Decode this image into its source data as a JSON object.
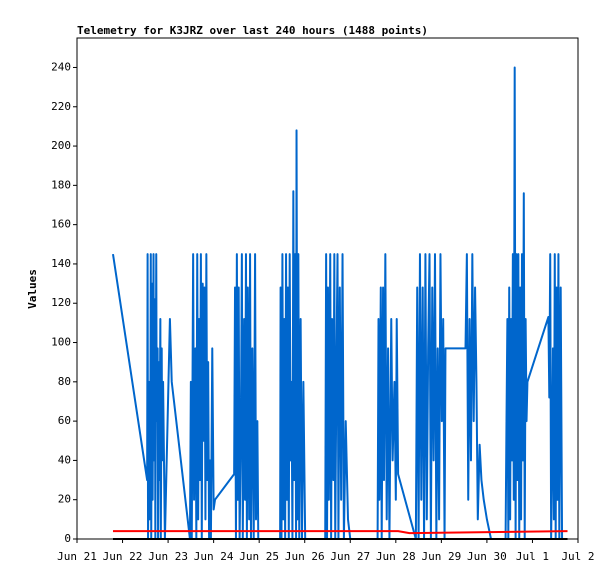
{
  "chart_data": {
    "type": "line",
    "title": "Telemetry for K3JRZ over last 240 hours (1488 points)",
    "y_label": "Values",
    "xlim": [
      0,
      11
    ],
    "xticks": [
      {
        "value": 0,
        "label": "Jun 21"
      },
      {
        "value": 1,
        "label": "Jun 22"
      },
      {
        "value": 2,
        "label": "Jun 23"
      },
      {
        "value": 3,
        "label": "Jun 24"
      },
      {
        "value": 4,
        "label": "Jun 25"
      },
      {
        "value": 5,
        "label": "Jun 26"
      },
      {
        "value": 6,
        "label": "Jun 27"
      },
      {
        "value": 7,
        "label": "Jun 28"
      },
      {
        "value": 8,
        "label": "Jun 29"
      },
      {
        "value": 9,
        "label": "Jun 30"
      },
      {
        "value": 10,
        "label": "Jul 1"
      },
      {
        "value": 11,
        "label": "Jul 2"
      }
    ],
    "ylim": [
      0,
      255
    ],
    "yticks": [
      0,
      20,
      40,
      60,
      80,
      100,
      120,
      140,
      160,
      180,
      200,
      220,
      240
    ],
    "series": [
      {
        "color": "#0066cc",
        "x": [
          0.79,
          1.54,
          1.55,
          1.56,
          1.58,
          1.59,
          1.61,
          1.62,
          1.63,
          1.65,
          1.66,
          1.68,
          1.69,
          1.71,
          1.72,
          1.74,
          1.75,
          1.77,
          1.78,
          1.8,
          1.81,
          1.83,
          1.84,
          1.86,
          1.87,
          1.89,
          1.93,
          2.04,
          2.08,
          2.48,
          2.5,
          2.52,
          2.55,
          2.57,
          2.6,
          2.62,
          2.64,
          2.66,
          2.68,
          2.7,
          2.72,
          2.74,
          2.76,
          2.78,
          2.8,
          2.82,
          2.84,
          2.86,
          2.88,
          2.9,
          2.92,
          2.94,
          2.97,
          3.0,
          3.03,
          3.45,
          3.47,
          3.49,
          3.51,
          3.53,
          3.55,
          3.57,
          3.6,
          3.62,
          3.64,
          3.67,
          3.69,
          3.71,
          3.73,
          3.75,
          3.78,
          3.8,
          3.82,
          3.85,
          3.88,
          3.91,
          3.93,
          3.96,
          3.98,
          4.02,
          4.46,
          4.47,
          4.49,
          4.51,
          4.53,
          4.55,
          4.57,
          4.59,
          4.61,
          4.63,
          4.65,
          4.67,
          4.69,
          4.71,
          4.73,
          4.75,
          4.77,
          4.79,
          4.81,
          4.82,
          4.84,
          4.86,
          4.88,
          4.91,
          4.94,
          4.97,
          5.01,
          5.45,
          5.47,
          5.49,
          5.51,
          5.53,
          5.56,
          5.58,
          5.6,
          5.63,
          5.65,
          5.67,
          5.7,
          5.72,
          5.74,
          5.77,
          5.8,
          5.83,
          5.86,
          5.9,
          5.95,
          6.0,
          6.6,
          6.62,
          6.64,
          6.67,
          6.69,
          6.72,
          6.74,
          6.77,
          6.8,
          6.83,
          6.86,
          6.9,
          6.93,
          6.97,
          7.0,
          7.02,
          7.05,
          7.44,
          7.47,
          7.5,
          7.53,
          7.56,
          7.59,
          7.62,
          7.65,
          7.68,
          7.71,
          7.74,
          7.77,
          7.8,
          7.83,
          7.86,
          7.89,
          7.92,
          7.95,
          7.98,
          8.01,
          8.04,
          8.07,
          8.09,
          8.53,
          8.56,
          8.59,
          8.62,
          8.65,
          8.68,
          8.71,
          8.74,
          8.77,
          8.8,
          8.84,
          8.88,
          8.93,
          9.0,
          9.09,
          9.41,
          9.43,
          9.45,
          9.47,
          9.49,
          9.51,
          9.53,
          9.55,
          9.57,
          9.59,
          9.61,
          9.63,
          9.65,
          9.67,
          9.69,
          9.71,
          9.73,
          9.75,
          9.77,
          9.79,
          9.81,
          9.83,
          9.85,
          9.87,
          9.89,
          10.35,
          10.37,
          10.39,
          10.41,
          10.43,
          10.45,
          10.47,
          10.49,
          10.51,
          10.53,
          10.55,
          10.57,
          10.59,
          10.62,
          10.65,
          10.7,
          10.77
        ],
        "values": [
          145,
          30,
          145,
          0,
          80,
          10,
          48,
          145,
          0,
          130,
          20,
          145,
          40,
          122,
          0,
          145,
          60,
          97,
          0,
          90,
          30,
          112,
          0,
          97,
          40,
          80,
          0,
          112,
          80,
          0,
          80,
          0,
          145,
          20,
          97,
          0,
          145,
          10,
          112,
          30,
          145,
          0,
          130,
          50,
          128,
          10,
          145,
          30,
          90,
          0,
          40,
          0,
          97,
          15,
          20,
          33,
          128,
          0,
          145,
          20,
          128,
          0,
          60,
          145,
          0,
          112,
          20,
          145,
          0,
          128,
          10,
          145,
          0,
          97,
          0,
          145,
          10,
          60,
          0,
          0,
          0,
          128,
          0,
          145,
          10,
          112,
          0,
          145,
          20,
          128,
          0,
          145,
          40,
          80,
          0,
          177,
          30,
          145,
          0,
          208,
          10,
          145,
          0,
          112,
          0,
          80,
          0,
          0,
          145,
          0,
          128,
          20,
          145,
          0,
          112,
          30,
          145,
          0,
          97,
          145,
          0,
          128,
          20,
          145,
          0,
          60,
          10,
          0,
          0,
          112,
          20,
          128,
          0,
          128,
          30,
          145,
          10,
          97,
          0,
          112,
          40,
          80,
          20,
          112,
          33,
          0,
          128,
          0,
          145,
          20,
          128,
          0,
          145,
          10,
          97,
          145,
          0,
          128,
          40,
          145,
          0,
          97,
          10,
          145,
          60,
          112,
          0,
          97,
          97,
          145,
          20,
          112,
          40,
          145,
          60,
          128,
          80,
          10,
          48,
          30,
          20,
          10,
          0,
          0,
          60,
          112,
          0,
          128,
          10,
          112,
          40,
          145,
          20,
          240,
          0,
          145,
          30,
          145,
          0,
          128,
          10,
          145,
          40,
          176,
          0,
          112,
          60,
          80,
          113,
          72,
          145,
          0,
          40,
          97,
          10,
          145,
          0,
          128,
          20,
          145,
          0,
          128,
          0,
          0,
          0
        ]
      },
      {
        "color": "#ff0000",
        "x": [
          0.79,
          7.05,
          7.3,
          10.77
        ],
        "values": [
          4,
          4,
          3,
          4
        ]
      },
      {
        "color": "#000000",
        "x": [
          0.79,
          10.77
        ],
        "values": [
          0,
          0
        ]
      }
    ]
  }
}
